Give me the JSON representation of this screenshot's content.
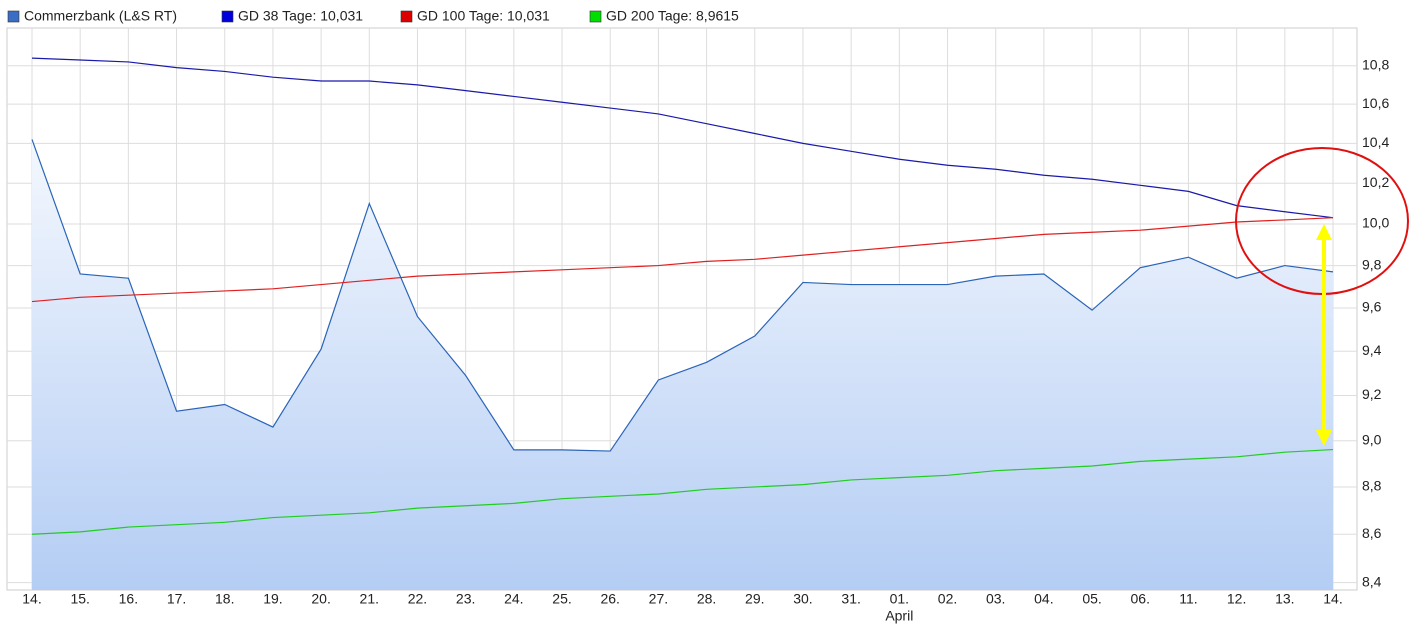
{
  "chart_data": {
    "type": "line",
    "categories": [
      "14.",
      "15.",
      "16.",
      "17.",
      "18.",
      "19.",
      "20.",
      "21.",
      "22.",
      "23.",
      "24.",
      "25.",
      "26.",
      "27.",
      "28.",
      "29.",
      "30.",
      "31.",
      "01.",
      "02.",
      "03.",
      "04.",
      "05.",
      "06.",
      "11.",
      "12.",
      "13.",
      "14."
    ],
    "x_sublabel": "April",
    "series": [
      {
        "name": "Commerzbank (L&S RT)",
        "color": "#2a64b8",
        "legend_color": "#3a6dc4",
        "area": true,
        "values": [
          10.42,
          9.76,
          9.74,
          9.13,
          9.16,
          9.06,
          9.41,
          10.1,
          9.56,
          9.29,
          8.96,
          8.96,
          8.955,
          9.27,
          9.35,
          9.47,
          9.72,
          9.71,
          9.71,
          9.71,
          9.75,
          9.76,
          9.59,
          9.79,
          9.84,
          9.74,
          9.8,
          9.77
        ]
      },
      {
        "name": "GD 38 Tage: 10,031",
        "color": "#1a1aaa",
        "legend_color": "#0000dd",
        "values": [
          10.84,
          10.83,
          10.82,
          10.79,
          10.77,
          10.74,
          10.72,
          10.72,
          10.7,
          10.67,
          10.64,
          10.61,
          10.58,
          10.55,
          10.5,
          10.45,
          10.4,
          10.36,
          10.32,
          10.29,
          10.27,
          10.24,
          10.22,
          10.19,
          10.16,
          10.09,
          10.06,
          10.031
        ]
      },
      {
        "name": "GD 100 Tage: 10,031",
        "color": "#e02020",
        "legend_color": "#dd0000",
        "values": [
          9.63,
          9.65,
          9.66,
          9.67,
          9.68,
          9.69,
          9.71,
          9.73,
          9.75,
          9.76,
          9.77,
          9.78,
          9.79,
          9.8,
          9.82,
          9.83,
          9.85,
          9.87,
          9.89,
          9.91,
          9.93,
          9.95,
          9.96,
          9.97,
          9.99,
          10.01,
          10.02,
          10.031
        ]
      },
      {
        "name": "GD 200 Tage: 8,9615",
        "color": "#22cc22",
        "legend_color": "#00dd00",
        "values": [
          8.6,
          8.61,
          8.63,
          8.64,
          8.65,
          8.67,
          8.68,
          8.69,
          8.71,
          8.72,
          8.73,
          8.75,
          8.76,
          8.77,
          8.79,
          8.8,
          8.81,
          8.83,
          8.84,
          8.85,
          8.87,
          8.88,
          8.89,
          8.91,
          8.92,
          8.93,
          8.95,
          8.9615
        ]
      }
    ],
    "ylim": [
      8.37,
      11.0
    ],
    "log_scale": true,
    "grid": true,
    "yticks": [
      {
        "value": 8.4,
        "label": "8,4"
      },
      {
        "value": 8.6,
        "label": "8,6"
      },
      {
        "value": 8.8,
        "label": "8,8"
      },
      {
        "value": 9.0,
        "label": "9,0"
      },
      {
        "value": 9.2,
        "label": "9,2"
      },
      {
        "value": 9.4,
        "label": "9,4"
      },
      {
        "value": 9.6,
        "label": "9,6"
      },
      {
        "value": 9.8,
        "label": "9,8"
      },
      {
        "value": 10.0,
        "label": "10,0"
      },
      {
        "value": 10.2,
        "label": "10,2"
      },
      {
        "value": 10.4,
        "label": "10,4"
      },
      {
        "value": 10.6,
        "label": "10,6"
      },
      {
        "value": 10.8,
        "label": "10,8"
      }
    ]
  }
}
